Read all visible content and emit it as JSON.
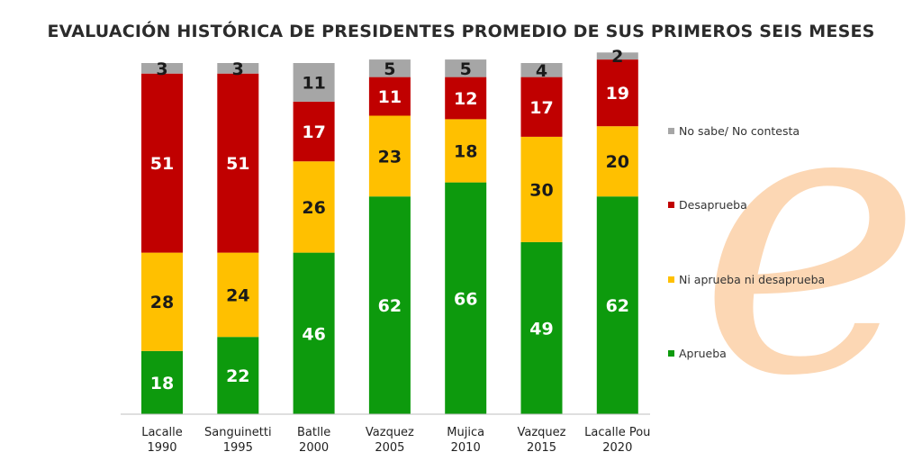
{
  "watermark": {
    "glyph": "e",
    "color": "#fcd7b4"
  },
  "chart_data": {
    "type": "bar",
    "stacked": true,
    "title": "EVALUACIÓN HISTÓRICA DE PRESIDENTES PROMEDIO DE SUS PRIMEROS SEIS MESES",
    "categories": [
      [
        "Lacalle",
        "1990"
      ],
      [
        "Sanguinetti",
        "1995"
      ],
      [
        "Batlle",
        "2000"
      ],
      [
        "Vazquez",
        "2005"
      ],
      [
        "Mujica",
        "2010"
      ],
      [
        "Vazquez",
        "2015"
      ],
      [
        "Lacalle Pou",
        "2020"
      ]
    ],
    "series": [
      {
        "name": "Aprueba",
        "color": "#0d9a0d",
        "label_color": "#ffffff",
        "values": [
          18,
          22,
          46,
          62,
          66,
          49,
          62
        ]
      },
      {
        "name": "Ni aprueba ni desaprueba",
        "color": "#ffc000",
        "label_color": "#1a1a1a",
        "values": [
          28,
          24,
          26,
          23,
          18,
          30,
          20
        ]
      },
      {
        "name": "Desaprueba",
        "color": "#c00000",
        "label_color": "#ffffff",
        "values": [
          51,
          51,
          17,
          11,
          12,
          17,
          19
        ]
      },
      {
        "name": "No sabe/ No contesta",
        "color": "#a6a6a6",
        "label_color": "#1a1a1a",
        "values": [
          3,
          3,
          11,
          5,
          5,
          4,
          2
        ]
      }
    ],
    "ylim": [
      0,
      100
    ],
    "legend_order": [
      "No sabe/ No contesta",
      "Desaprueba",
      "Ni aprueba ni desaprueba",
      "Aprueba"
    ],
    "legend_position": "right"
  }
}
